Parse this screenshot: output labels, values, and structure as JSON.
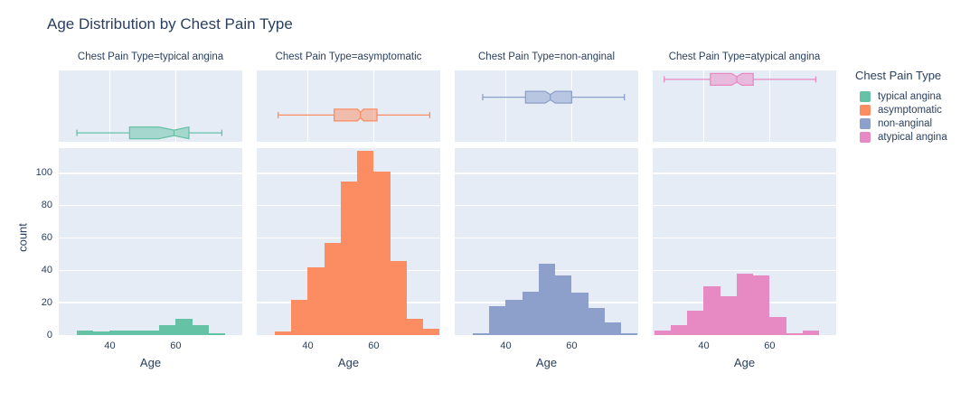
{
  "title": "Age Distribution by Chest Pain Type",
  "colors": {
    "background": "#ffffff",
    "panel": "#E5ECF6",
    "grid": "#ffffff",
    "text": "#2a3f5f"
  },
  "x_axis": {
    "title": "Age",
    "ticks": [
      40,
      60
    ],
    "range": [
      24.5,
      80.2
    ]
  },
  "y_axis": {
    "title": "count",
    "ticks": [
      0,
      20,
      40,
      60,
      80,
      100
    ],
    "range": [
      0,
      115.5
    ]
  },
  "legend": {
    "title": "Chest Pain Type",
    "items": [
      {
        "label": "typical angina",
        "color": "#66C2A5"
      },
      {
        "label": "asymptomatic",
        "color": "#FC8D62"
      },
      {
        "label": "non-anginal",
        "color": "#8DA0CB"
      },
      {
        "label": "atypical angina",
        "color": "#E78AC3"
      }
    ]
  },
  "chart_data": {
    "type": "bar",
    "subtype": "faceted histogram with box marginal",
    "facet_by": "Chest Pain Type",
    "x_field": "Age",
    "title": "Age Distribution by Chest Pain Type",
    "xlabel": "Age",
    "ylabel": "count",
    "bin_width": 5,
    "xlim": [
      24.5,
      80.2
    ],
    "ylim": [
      0,
      115.5
    ],
    "grid": "horizontal-in-histogram, vertical-in-box-row",
    "legend_position": "right",
    "facets": [
      {
        "title": "Chest Pain Type=typical angina",
        "category": "typical angina",
        "color": "#66C2A5",
        "bin_start": 30,
        "counts": [
          3,
          2,
          3,
          3,
          3,
          6,
          10,
          6,
          1
        ],
        "box": {
          "min": 30,
          "q1": 46,
          "median": 59.5,
          "q3": 64,
          "max": 74
        }
      },
      {
        "title": "Chest Pain Type=asymptomatic",
        "category": "asymptomatic",
        "color": "#FC8D62",
        "bin_start": 30,
        "counts": [
          2,
          22,
          42,
          57,
          95,
          114,
          101,
          46,
          10,
          4
        ],
        "box": {
          "min": 31,
          "q1": 48,
          "median": 56,
          "q3": 61,
          "max": 77
        }
      },
      {
        "title": "Chest Pain Type=non-anginal",
        "category": "non-anginal",
        "color": "#8DA0CB",
        "bin_start": 30,
        "counts": [
          1,
          18,
          22,
          27,
          44,
          37,
          26,
          17,
          8,
          1
        ],
        "box": {
          "min": 33,
          "q1": 46,
          "median": 53.5,
          "q3": 60,
          "max": 76
        }
      },
      {
        "title": "Chest Pain Type=atypical angina",
        "category": "atypical angina",
        "color": "#E78AC3",
        "bin_start": 25,
        "counts": [
          3,
          6,
          15,
          30,
          24,
          38,
          37,
          11,
          1,
          3
        ],
        "box": {
          "min": 28,
          "q1": 42,
          "median": 50,
          "q3": 55,
          "max": 74
        }
      }
    ]
  }
}
